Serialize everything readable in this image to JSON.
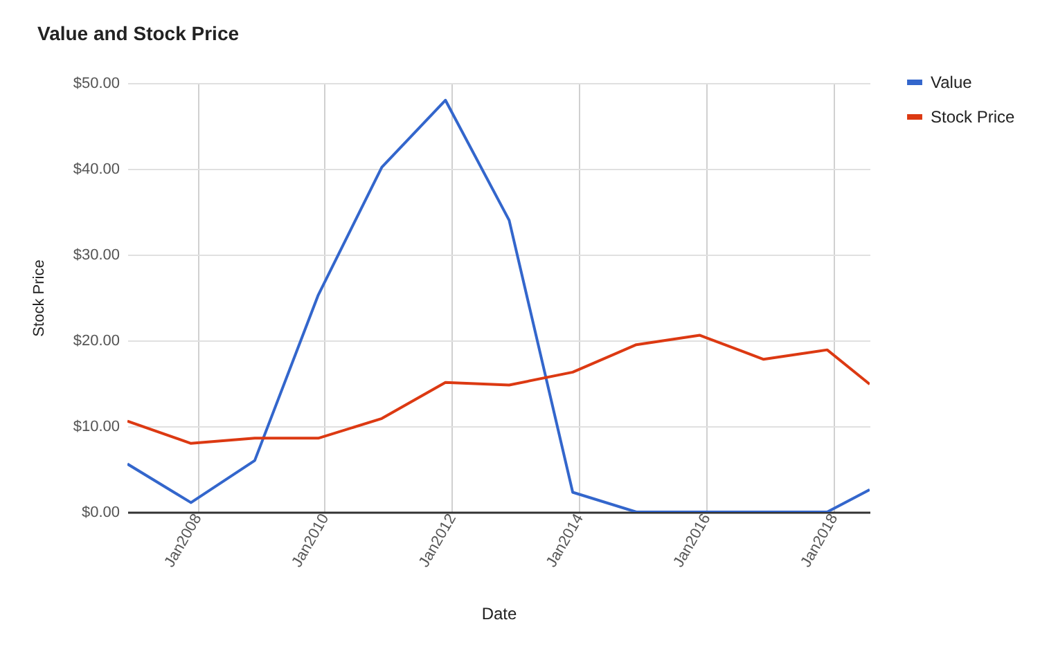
{
  "chart_data": {
    "type": "line",
    "title": "Value and Stock Price",
    "xlabel": "Date",
    "ylabel": "Stock Price",
    "x": [
      "2006-11-25",
      "2007-11-25",
      "2008-11-25",
      "2009-11-25",
      "2010-11-25",
      "2011-11-25",
      "2012-11-25",
      "2013-11-25",
      "2014-11-25",
      "2015-11-25",
      "2016-11-25",
      "2017-11-25",
      "2018-07-27"
    ],
    "series": [
      {
        "name": "Value",
        "color": "#3366cc",
        "values": [
          5.6,
          1.1,
          6.0,
          25.3,
          40.2,
          48.0,
          34.0,
          2.3,
          0,
          0,
          0,
          0,
          2.6
        ]
      },
      {
        "name": "Stock Price",
        "color": "#dc3912",
        "values": [
          10.6,
          8.0,
          8.6,
          8.6,
          10.9,
          15.1,
          14.8,
          16.3,
          19.5,
          20.6,
          17.8,
          18.9,
          14.9
        ]
      }
    ],
    "xlim": [
      "2006-11-25",
      "2018-07-27"
    ],
    "xticks": [
      {
        "value": "2008-01-01",
        "label": "Jan2008"
      },
      {
        "value": "2010-01-01",
        "label": "Jan2010"
      },
      {
        "value": "2012-01-01",
        "label": "Jan2012"
      },
      {
        "value": "2014-01-01",
        "label": "Jan2014"
      },
      {
        "value": "2016-01-01",
        "label": "Jan2016"
      },
      {
        "value": "2018-01-01",
        "label": "Jan2018"
      }
    ],
    "ylim": [
      0,
      50
    ],
    "yticks": [
      {
        "value": 0,
        "label": "$0.00"
      },
      {
        "value": 10,
        "label": "$10.00"
      },
      {
        "value": 20,
        "label": "$20.00"
      },
      {
        "value": 30,
        "label": "$30.00"
      },
      {
        "value": 40,
        "label": "$40.00"
      },
      {
        "value": 50,
        "label": "$50.00"
      }
    ],
    "grid": true,
    "legend": "top right",
    "line_style": "solid"
  }
}
